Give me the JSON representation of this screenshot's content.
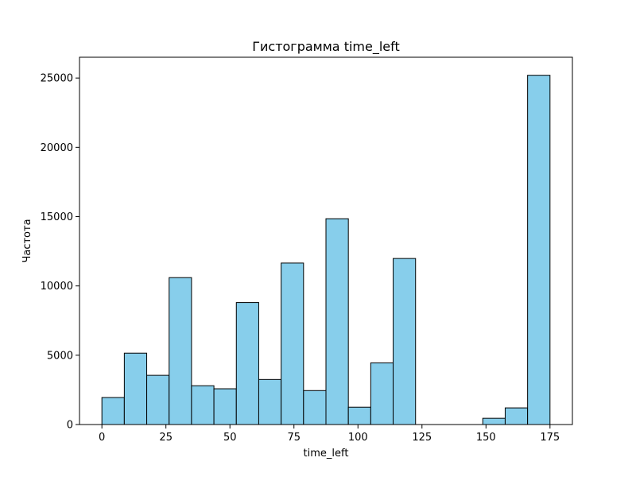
{
  "chart_data": {
    "type": "bar",
    "title": "Гистограмма time_left",
    "xlabel": "time_left",
    "ylabel": "Частота",
    "xlim": [
      -8.75,
      183.75
    ],
    "ylim": [
      0,
      26500
    ],
    "x_ticks": [
      0,
      25,
      50,
      75,
      100,
      125,
      150,
      175
    ],
    "y_ticks": [
      0,
      5000,
      10000,
      15000,
      20000,
      25000
    ],
    "grid": false,
    "bin_edges": [
      0,
      8.75,
      17.5,
      26.25,
      35,
      43.75,
      52.5,
      61.25,
      70,
      78.75,
      87.5,
      96.25,
      105,
      113.75,
      122.5,
      131.25,
      140,
      148.75,
      157.5,
      166.25,
      175
    ],
    "values": [
      1950,
      5150,
      3550,
      10600,
      2800,
      2580,
      8800,
      3250,
      11650,
      2450,
      14850,
      1250,
      4450,
      11980,
      0,
      0,
      0,
      450,
      1200,
      25200
    ],
    "bar_color": "#87ceeb",
    "edge_color": "#000000"
  }
}
